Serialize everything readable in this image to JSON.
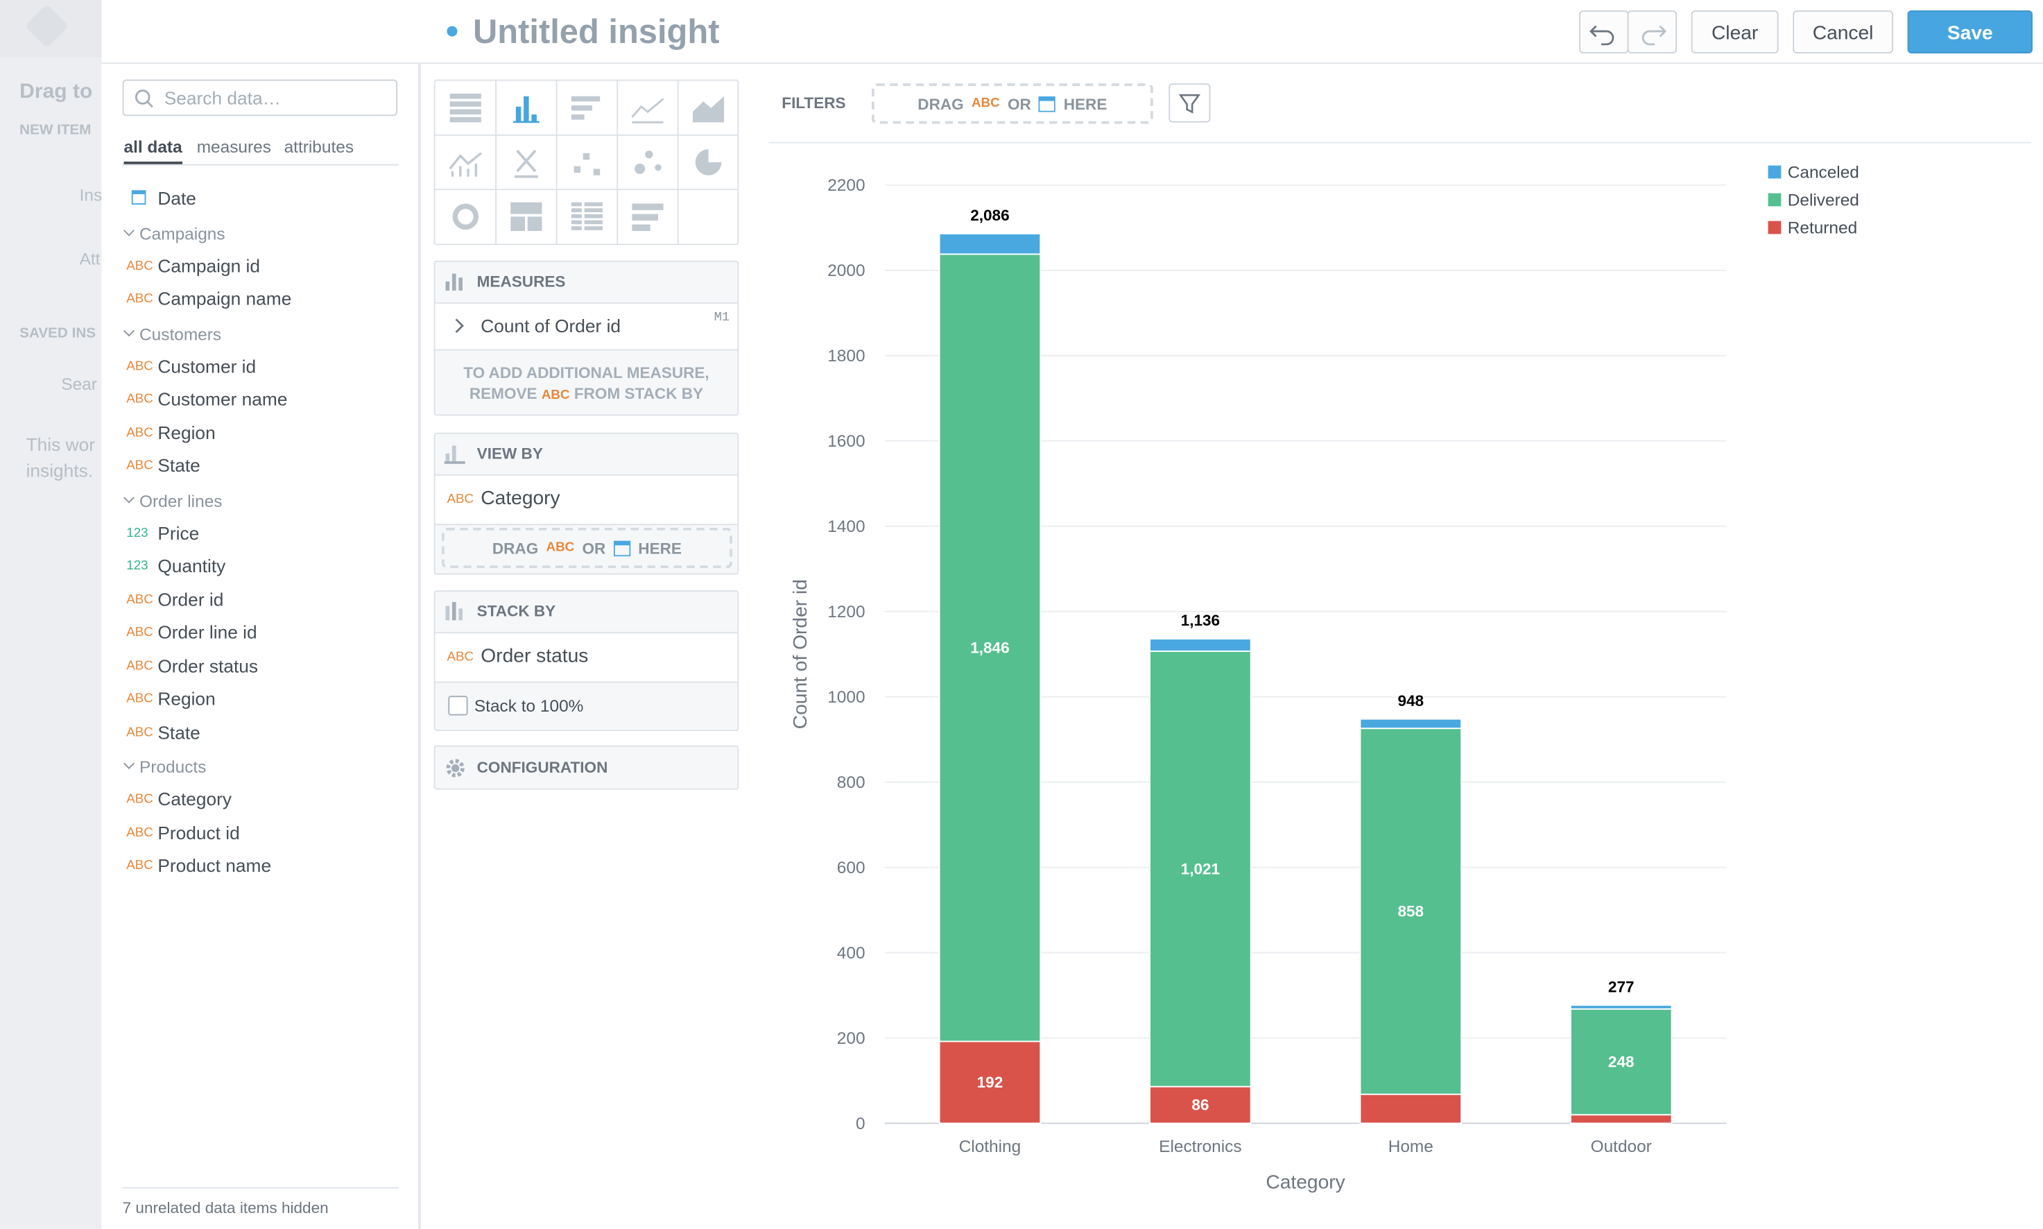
{
  "header": {
    "title": "Untitled insight",
    "buttons": [
      "Clear",
      "Cancel",
      "Save"
    ]
  },
  "background_panel": [
    "Drag to",
    "NEW ITEM",
    "Ins",
    "Att",
    "SAVED INS",
    "Sear",
    "This wor",
    "insights."
  ],
  "sidebar": {
    "search_placeholder": "Search data…",
    "tabs": [
      "all data",
      "measures",
      "attributes"
    ],
    "date_item": "Date",
    "groups": [
      {
        "name": "Campaigns",
        "items": [
          {
            "type": "ABC",
            "label": "Campaign id"
          },
          {
            "type": "ABC",
            "label": "Campaign name"
          }
        ]
      },
      {
        "name": "Customers",
        "items": [
          {
            "type": "ABC",
            "label": "Customer id"
          },
          {
            "type": "ABC",
            "label": "Customer name"
          },
          {
            "type": "ABC",
            "label": "Region"
          },
          {
            "type": "ABC",
            "label": "State"
          }
        ]
      },
      {
        "name": "Order lines",
        "items": [
          {
            "type": "123",
            "label": "Price"
          },
          {
            "type": "123",
            "label": "Quantity"
          },
          {
            "type": "ABC",
            "label": "Order id"
          },
          {
            "type": "ABC",
            "label": "Order line id"
          },
          {
            "type": "ABC",
            "label": "Order status"
          },
          {
            "type": "ABC",
            "label": "Region"
          },
          {
            "type": "ABC",
            "label": "State"
          }
        ]
      },
      {
        "name": "Products",
        "items": [
          {
            "type": "ABC",
            "label": "Category"
          },
          {
            "type": "ABC",
            "label": "Product id"
          },
          {
            "type": "ABC",
            "label": "Product name"
          }
        ]
      }
    ],
    "footer": "7 unrelated data items hidden"
  },
  "buckets": {
    "measures": {
      "title": "MEASURES",
      "item": "Count of Order id",
      "item_id": "M1",
      "note": [
        "TO ADD ADDITIONAL MEASURE,",
        "REMOVE",
        "ABC",
        "FROM STACK BY"
      ]
    },
    "view_by": {
      "title": "VIEW BY",
      "item_type": "ABC",
      "item": "Category",
      "drop_zone": [
        "DRAG",
        "ABC",
        "OR",
        "HERE"
      ]
    },
    "stack_by": {
      "title": "STACK BY",
      "item_type": "ABC",
      "item": "Order status",
      "checkbox": "Stack to 100%"
    },
    "configuration": {
      "title": "CONFIGURATION"
    }
  },
  "filters": {
    "title": "FILTERS",
    "drop_zone": [
      "DRAG",
      "ABC",
      "OR",
      "HERE"
    ]
  },
  "chart_data": {
    "type": "bar",
    "stacked": true,
    "x_label": "Category",
    "y_label": "Count of Order id",
    "categories": [
      "Clothing",
      "Electronics",
      "Home",
      "Outdoor"
    ],
    "series": [
      {
        "name": "Canceled",
        "color": "#4aa8e0",
        "values": [
          48,
          29,
          22,
          9
        ]
      },
      {
        "name": "Delivered",
        "color": "#55bf8f",
        "values": [
          1846,
          1021,
          858,
          248
        ],
        "value_labels": [
          "1,846",
          "1,021",
          "858",
          "248"
        ]
      },
      {
        "name": "Returned",
        "color": "#d9534a",
        "values": [
          192,
          86,
          68,
          20
        ],
        "value_labels": [
          "192",
          "86",
          null,
          null
        ]
      }
    ],
    "totals": [
      2086,
      1136,
      948,
      277
    ],
    "total_labels": [
      "2,086",
      "1,136",
      "948",
      "277"
    ],
    "ylim": [
      0,
      2200
    ],
    "yticks": [
      0,
      200,
      400,
      600,
      800,
      1000,
      1200,
      1400,
      1600,
      1800,
      2000,
      2200
    ],
    "grid": true,
    "legend": "top-right"
  }
}
